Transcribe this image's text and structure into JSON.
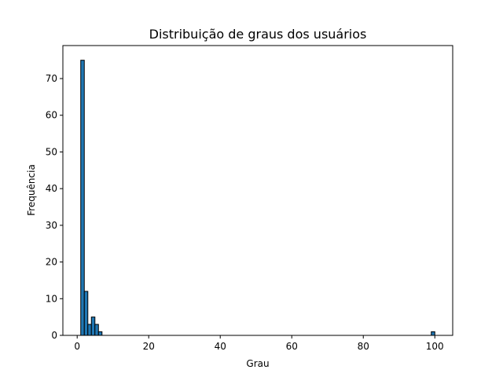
{
  "chart_data": {
    "type": "bar",
    "title": "Distribuição de graus dos usuários",
    "xlabel": "Grau",
    "ylabel": "Frequência",
    "xlim": [
      -4.0,
      105.0
    ],
    "ylim": [
      0,
      79
    ],
    "xticks": [
      0,
      20,
      40,
      60,
      80,
      100
    ],
    "yticks": [
      0,
      10,
      20,
      30,
      40,
      50,
      60,
      70
    ],
    "grid": false,
    "colors": {
      "bar_fill": "#1f77b4",
      "bar_edge": "#000000",
      "axes": "#000000"
    },
    "bins": [
      {
        "x0": 1.0,
        "x1": 1.99,
        "value": 75
      },
      {
        "x0": 1.99,
        "x1": 2.98,
        "value": 12
      },
      {
        "x0": 2.98,
        "x1": 3.97,
        "value": 3
      },
      {
        "x0": 3.97,
        "x1": 4.96,
        "value": 5
      },
      {
        "x0": 4.96,
        "x1": 5.95,
        "value": 3
      },
      {
        "x0": 5.95,
        "x1": 6.94,
        "value": 1
      },
      {
        "x0": 99.01,
        "x1": 100.0,
        "value": 1
      }
    ]
  }
}
